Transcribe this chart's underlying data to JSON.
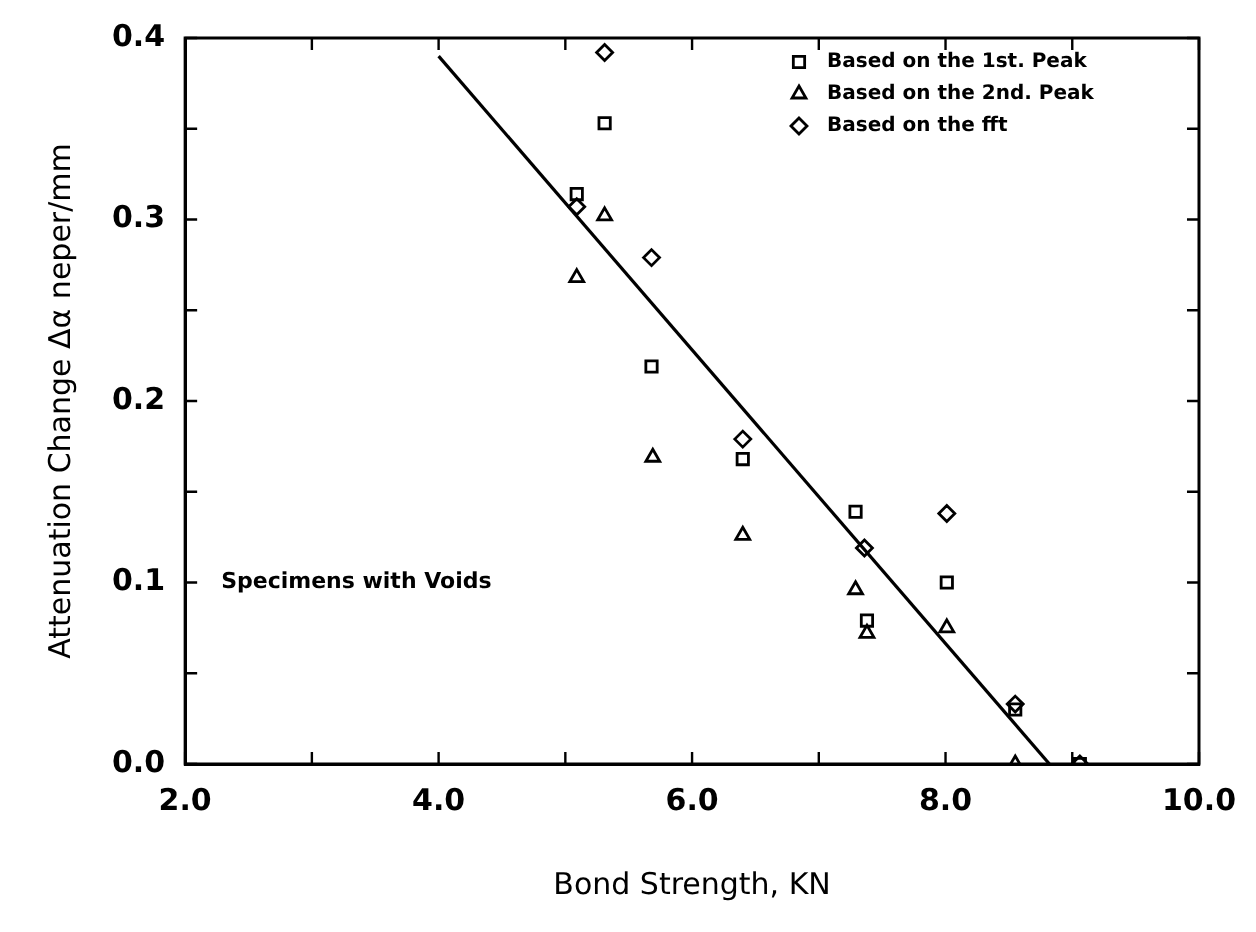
{
  "chart_data": {
    "type": "scatter",
    "xlabel": "Bond Strength, KN",
    "ylabel": "Attenuation Change Δα neper/mm",
    "xlim": [
      2,
      10
    ],
    "ylim": [
      0,
      0.4
    ],
    "xticks": [
      {
        "value": 2,
        "label": "2.0"
      },
      {
        "value": 3,
        "label": null
      },
      {
        "value": 4,
        "label": "4.0"
      },
      {
        "value": 5,
        "label": null
      },
      {
        "value": 6,
        "label": "6.0"
      },
      {
        "value": 7,
        "label": null
      },
      {
        "value": 8,
        "label": "8.0"
      },
      {
        "value": 9,
        "label": null
      },
      {
        "value": 10,
        "label": "10.0"
      }
    ],
    "yticks": [
      {
        "value": 0,
        "label": "0.0"
      },
      {
        "value": 0.05,
        "label": null
      },
      {
        "value": 0.1,
        "label": "0.1"
      },
      {
        "value": 0.15,
        "label": null
      },
      {
        "value": 0.2,
        "label": "0.2"
      },
      {
        "value": 0.25,
        "label": null
      },
      {
        "value": 0.3,
        "label": "0.3"
      },
      {
        "value": 0.35,
        "label": null
      },
      {
        "value": 0.4,
        "label": "0.4"
      }
    ],
    "grid": false,
    "legend": "top right",
    "annotations": [
      "Specimens with Voids"
    ],
    "series": [
      {
        "name": "Based on the 1st. Peak",
        "color": "#000000",
        "marker": "square",
        "x": [
          5.09,
          5.31,
          5.68,
          6.4,
          7.29,
          7.38,
          8.01,
          8.55,
          9.06
        ],
        "values": [
          0.314,
          0.353,
          0.219,
          0.168,
          0.139,
          0.079,
          0.1,
          0.03,
          0
        ]
      },
      {
        "name": "Based on the 2nd. Peak",
        "color": "#000000",
        "marker": "triangle",
        "x": [
          5.09,
          5.31,
          5.69,
          6.4,
          7.29,
          7.38,
          8.01,
          8.55
        ],
        "values": [
          0.268,
          0.302,
          0.169,
          0.126,
          0.096,
          0.072,
          0.075,
          0
        ]
      },
      {
        "name": "Based on the fft",
        "color": "#000000",
        "marker": "diamond",
        "x": [
          5.09,
          5.31,
          5.68,
          6.4,
          7.36,
          8.01,
          8.55,
          9.06
        ],
        "values": [
          0.307,
          0.392,
          0.279,
          0.179,
          0.119,
          0.138,
          0.033,
          0
        ]
      },
      {
        "type": "line",
        "color": "#000000",
        "marker": "none",
        "line_style": "solid",
        "x": [
          4.0,
          8.82
        ],
        "values": [
          0.39,
          0
        ]
      }
    ]
  }
}
